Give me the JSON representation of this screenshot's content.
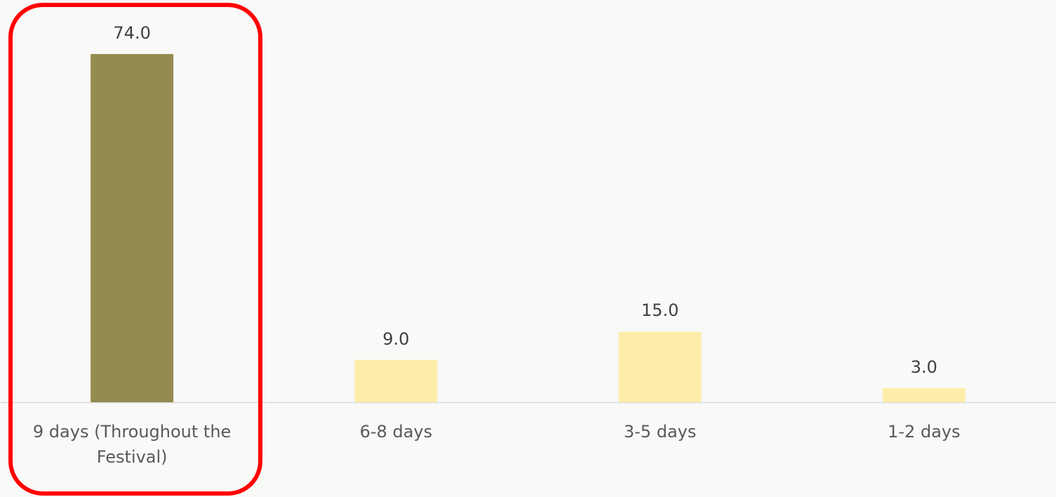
{
  "chart_data": {
    "type": "bar",
    "categories": [
      "9 days (Throughout the Festival)",
      "6-8 days",
      "3-5 days",
      "1-2 days"
    ],
    "values": [
      74,
      9,
      15,
      3
    ],
    "value_labels": [
      "74.0",
      "9.0",
      "15.0",
      "3.0"
    ],
    "colors": [
      "#948b50",
      "#feedaa",
      "#feedaa",
      "#feedaa"
    ]
  }
}
